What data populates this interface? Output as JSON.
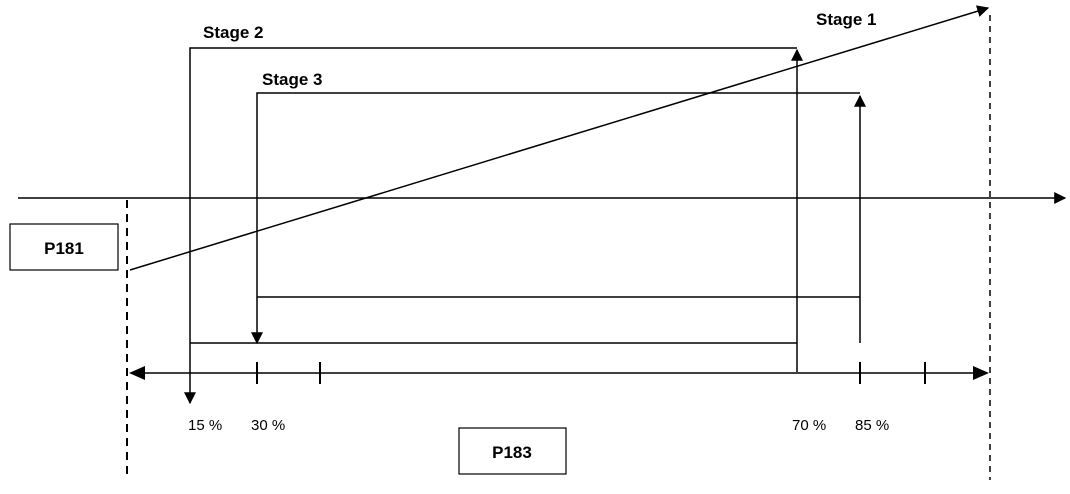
{
  "labels": {
    "stage1": "Stage 1",
    "stage2": "Stage 2",
    "stage3": "Stage 3"
  },
  "boxes": {
    "p181": "P181",
    "p183": "P183"
  },
  "percent_labels": {
    "p15": "15 %",
    "p30": "30 %",
    "p70": "70 %",
    "p85": "85 %"
  }
}
